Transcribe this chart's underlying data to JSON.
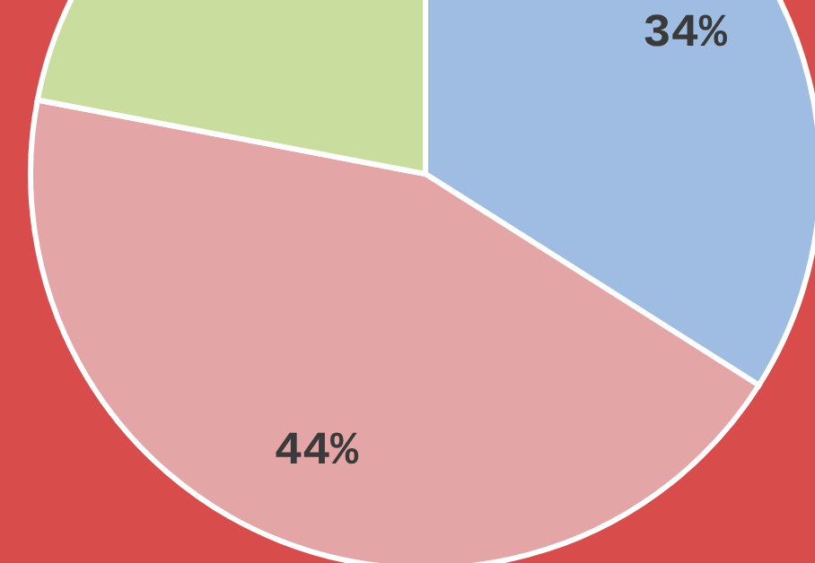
{
  "chart_data": {
    "type": "pie",
    "categories": [
      null,
      null,
      null
    ],
    "values": [
      34,
      44,
      22
    ],
    "colors": [
      "#9fbde3",
      "#e3a5a5",
      "#c9dd9e"
    ],
    "value_labels": [
      "34%",
      "44%",
      null
    ]
  }
}
